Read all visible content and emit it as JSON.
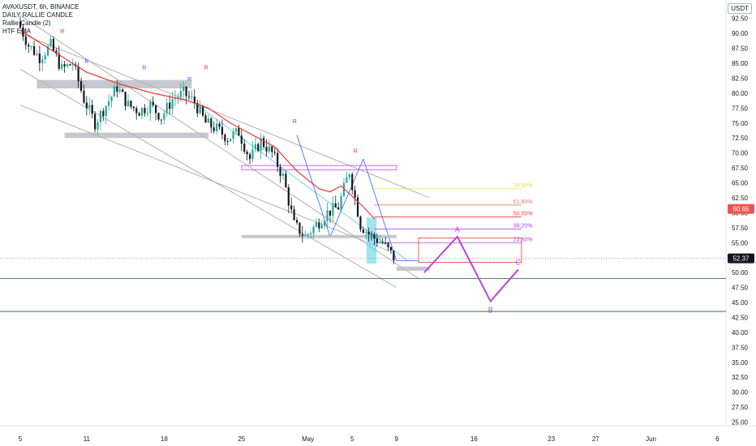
{
  "legend": {
    "symbol_line": "AVAXUSDT, 6h, BINANCE",
    "indicator_1": "DAILY RALLIE CANDLE",
    "indicator_2": "Rallie Candle (2)",
    "indicator_3": "HTF EMA"
  },
  "currency_badge": "USDT",
  "colors": {
    "up": "#26a69a",
    "down": "#131722",
    "ema": "#e53935",
    "channel": "#9e9e9e",
    "zone": "#b2b5be",
    "pattern": "#c040e0",
    "fib_786": "#e6e63c",
    "fib_618": "#e57373",
    "fib_500": "#e53935",
    "fib_382": "#b040e0",
    "fib_236": "#b040e0",
    "last_price_bg": "#131722",
    "ema_price_bg": "#ef5350",
    "support": "#1b5e20",
    "cyan_zone": "#4dd0e1",
    "marker_r": "#e53935",
    "marker_b": "#2962ff"
  },
  "chart_data": {
    "type": "candlestick",
    "title": "AVAXUSDT, 6h, BINANCE",
    "y_axis": {
      "min": 23.5,
      "max": 93,
      "ticks": [
        92.5,
        90.0,
        87.5,
        85.0,
        82.5,
        80.0,
        77.5,
        75.0,
        72.5,
        70.0,
        67.5,
        65.0,
        62.5,
        60.0,
        57.5,
        55.0,
        52.5,
        50.0,
        47.5,
        45.0,
        42.5,
        40.0,
        37.5,
        35.0,
        32.5,
        30.0,
        27.5,
        25.0
      ],
      "tick_labels": [
        "92.50",
        "90.00",
        "87.50",
        "85.00",
        "82.50",
        "80.00",
        "77.50",
        "75.00",
        "72.50",
        "70.00",
        "67.50",
        "65.00",
        "62.50",
        "60.00",
        "57.50",
        "55.00",
        "52.50",
        "50.00",
        "47.50",
        "45.00",
        "42.50",
        "40.00",
        "37.50",
        "35.00",
        "32.50",
        "30.00",
        "27.50",
        "25.00"
      ]
    },
    "x_axis": {
      "start": "Apr 5",
      "end": "Jun 9",
      "tick_labels": [
        "5",
        "11",
        "18",
        "25",
        "May",
        "5",
        "9",
        "16",
        "23",
        "27",
        "Jun",
        "6"
      ],
      "tick_days": [
        0,
        6,
        13,
        20,
        26,
        30,
        34,
        41,
        48,
        52,
        57,
        63
      ]
    },
    "candles_anchor_prices": [
      {
        "day": 0,
        "price": 92
      },
      {
        "day": 1,
        "price": 88
      },
      {
        "day": 2,
        "price": 86
      },
      {
        "day": 3,
        "price": 88
      },
      {
        "day": 4,
        "price": 84
      },
      {
        "day": 5,
        "price": 85
      },
      {
        "day": 6,
        "price": 79
      },
      {
        "day": 7,
        "price": 75
      },
      {
        "day": 8,
        "price": 78
      },
      {
        "day": 9,
        "price": 81
      },
      {
        "day": 10,
        "price": 78
      },
      {
        "day": 11,
        "price": 77
      },
      {
        "day": 12,
        "price": 78
      },
      {
        "day": 13,
        "price": 76
      },
      {
        "day": 14,
        "price": 79
      },
      {
        "day": 15,
        "price": 80
      },
      {
        "day": 16,
        "price": 78.5
      },
      {
        "day": 17,
        "price": 75
      },
      {
        "day": 18,
        "price": 74
      },
      {
        "day": 19,
        "price": 72.5
      },
      {
        "day": 20,
        "price": 73.5
      },
      {
        "day": 21,
        "price": 69
      },
      {
        "day": 22,
        "price": 72
      },
      {
        "day": 23,
        "price": 70
      },
      {
        "day": 24,
        "price": 66
      },
      {
        "day": 25,
        "price": 58
      },
      {
        "day": 26,
        "price": 56
      },
      {
        "day": 27,
        "price": 58
      },
      {
        "day": 28,
        "price": 60
      },
      {
        "day": 29,
        "price": 61
      },
      {
        "day": 30,
        "price": 67
      },
      {
        "day": 31,
        "price": 58
      },
      {
        "day": 32,
        "price": 56
      },
      {
        "day": 33,
        "price": 55
      },
      {
        "day": 34,
        "price": 52.5
      }
    ],
    "ema_points": [
      {
        "day": 0,
        "price": 90.5
      },
      {
        "day": 3,
        "price": 87
      },
      {
        "day": 6,
        "price": 83.5
      },
      {
        "day": 9,
        "price": 81.5
      },
      {
        "day": 12,
        "price": 80
      },
      {
        "day": 15,
        "price": 78.8
      },
      {
        "day": 17,
        "price": 77.5
      },
      {
        "day": 19,
        "price": 75
      },
      {
        "day": 21,
        "price": 73
      },
      {
        "day": 23,
        "price": 71
      },
      {
        "day": 25,
        "price": 67
      },
      {
        "day": 27,
        "price": 64
      },
      {
        "day": 28,
        "price": 63.5
      },
      {
        "day": 29,
        "price": 64.5
      },
      {
        "day": 31,
        "price": 61
      },
      {
        "day": 32,
        "price": 59
      }
    ],
    "price_labels": {
      "last_price": "52.37",
      "ema_price": "60.65"
    },
    "zones": [
      {
        "label": "",
        "from_day": 1.5,
        "to_day": 15.5,
        "low": 80.8,
        "high": 82.2
      },
      {
        "label": "",
        "from_day": 4,
        "to_day": 17,
        "low": 72.5,
        "high": 73.4
      },
      {
        "label": "",
        "from_day": 20,
        "to_day": 34,
        "low": 55.8,
        "high": 56.3
      },
      {
        "label": "",
        "from_day": 34,
        "to_day": 37,
        "low": 50.3,
        "high": 51
      }
    ],
    "fibonacci": [
      {
        "label": "78.60%",
        "price": 64
      },
      {
        "label": "61.80%",
        "price": 61.3
      },
      {
        "label": "50.00%",
        "price": 59.3
      },
      {
        "label": "38.20%",
        "price": 57.3
      },
      {
        "label": "23.60%",
        "price": 55
      }
    ],
    "support_lines": [
      49,
      43.5
    ],
    "harmonic_pattern": [
      {
        "label": "",
        "day": 36.5,
        "price": 50
      },
      {
        "label": "A",
        "day": 39.5,
        "price": 56
      },
      {
        "label": "B",
        "day": 42.5,
        "price": 45.2
      },
      {
        "label": "C",
        "day": 45,
        "price": 50.5
      }
    ],
    "pattern_labels": [
      "A",
      "B",
      "C"
    ],
    "marker_letter": "R"
  }
}
